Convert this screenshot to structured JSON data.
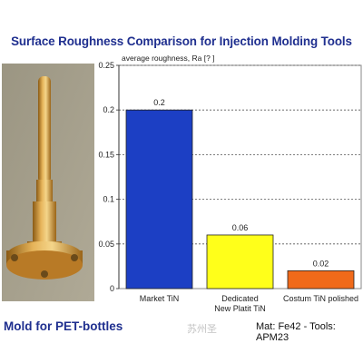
{
  "title": "Surface Roughness Comparison for Injection Molding Tools",
  "caption_left": "Mold for PET-bottles",
  "caption_right": "Mat: Fe42 - Tools: APM23",
  "watermark": "苏州圣",
  "colors": {
    "title": "#1f2f8f",
    "bar_market": "#1c3fc4",
    "bar_dedicated": "#ffff1a",
    "bar_custom": "#f06a1a",
    "plot_background": "#ffffff",
    "photo_background": "#a09a86",
    "part": "#c8882a"
  },
  "photo": {
    "description_icon": "molding-core-pin-photo"
  },
  "chart_data": {
    "type": "bar",
    "ylabel": "average roughness, Ra [? ]",
    "ylim": [
      0,
      0.25
    ],
    "yticks": [
      0,
      0.05,
      0.1,
      0.15,
      0.2,
      0.25
    ],
    "ytick_labels": [
      "0",
      "0.05",
      "0.1",
      "0.15",
      "0.2",
      "0.25"
    ],
    "grid": true,
    "categories": [
      "Market TiN",
      "Dedicated\nNew Platit TiN",
      "Costum TiN polished"
    ],
    "values": [
      0.2,
      0.06,
      0.02
    ],
    "value_labels": [
      "0.2",
      "0.06",
      "0.02"
    ]
  }
}
